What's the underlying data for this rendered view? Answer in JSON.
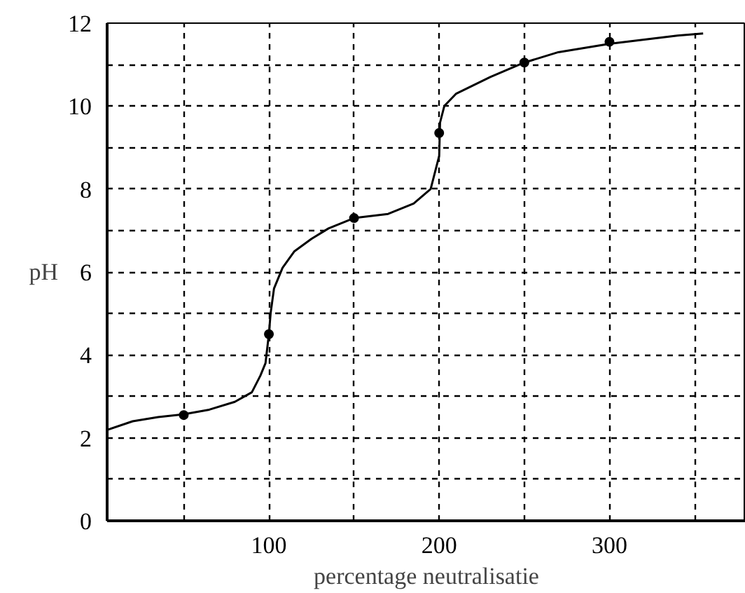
{
  "chart_data": {
    "type": "line",
    "xlabel": "percentage neutralisatie",
    "ylabel": "pH",
    "xlim": [
      5,
      380
    ],
    "ylim": [
      0,
      12
    ],
    "xticks": [
      {
        "value": 50,
        "label": null
      },
      100,
      {
        "value": 150,
        "label": null
      },
      200,
      {
        "value": 250,
        "label": null
      },
      300,
      {
        "value": 350,
        "label": null
      }
    ],
    "yticks": [
      0,
      {
        "value": 1,
        "label": null
      },
      2,
      {
        "value": 3,
        "label": null
      },
      4,
      {
        "value": 5,
        "label": null
      },
      6,
      {
        "value": 7,
        "label": null
      },
      8,
      {
        "value": 9,
        "label": null
      },
      10,
      {
        "value": 11,
        "label": null
      },
      12
    ],
    "grid": true,
    "line_style": "solid",
    "series": [
      {
        "color": "#000000",
        "x": [
          5,
          20,
          35,
          50,
          65,
          80,
          90,
          95,
          98,
          100,
          101,
          103,
          108,
          115,
          125,
          135,
          150,
          170,
          185,
          195,
          200,
          200.5,
          203,
          210,
          230,
          250,
          270,
          300,
          340,
          355
        ],
        "values": [
          2.19,
          2.4,
          2.5,
          2.57,
          2.68,
          2.87,
          3.1,
          3.5,
          3.8,
          4.5,
          5.0,
          5.6,
          6.1,
          6.5,
          6.8,
          7.05,
          7.3,
          7.4,
          7.65,
          8.0,
          8.8,
          9.6,
          10.0,
          10.3,
          10.7,
          11.05,
          11.3,
          11.5,
          11.7,
          11.75
        ]
      },
      {
        "type": "scatter",
        "marker": "circle",
        "color": "#000000",
        "x": [
          50,
          100,
          150,
          200,
          250,
          300
        ],
        "values": [
          2.55,
          4.5,
          7.3,
          9.35,
          11.05,
          11.55
        ]
      }
    ]
  }
}
